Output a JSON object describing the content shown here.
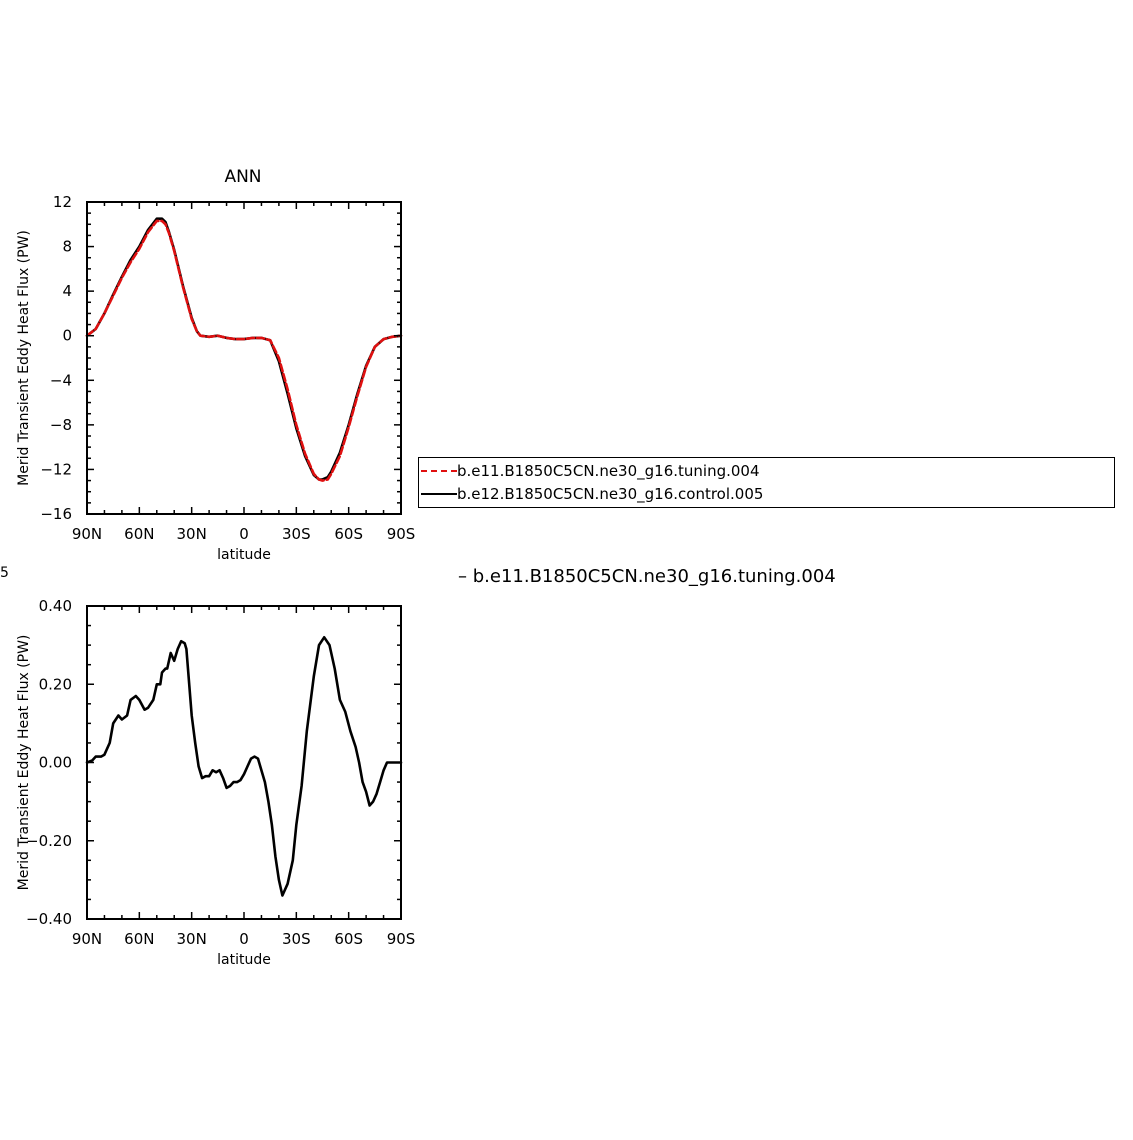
{
  "chart_data": [
    {
      "type": "line",
      "title": "ANN",
      "xlabel": "latitude",
      "ylabel": "Merid Transient Eddy Heat Flux (PW)",
      "xlim": [
        90,
        -90
      ],
      "ylim": [
        -16,
        12
      ],
      "xticks": [
        90,
        60,
        30,
        0,
        -30,
        -60,
        -90
      ],
      "xtick_labels": [
        "90N",
        "60N",
        "30N",
        "0",
        "30S",
        "60S",
        "90S"
      ],
      "yticks": [
        -16,
        -12,
        -8,
        -4,
        0,
        4,
        8,
        12
      ],
      "ytick_labels": [
        "−16",
        "−12",
        "−8",
        "−4",
        "0",
        "4",
        "8",
        "12"
      ],
      "legend_position": "right",
      "series": [
        {
          "name": "b.e11.B1850C5CN.ne30_g16.tuning.004",
          "color": "#e01010",
          "dash": "dashed",
          "x": [
            90,
            85,
            80,
            75,
            70,
            65,
            60,
            55,
            50,
            47,
            45,
            43,
            40,
            35,
            30,
            27,
            25,
            20,
            15,
            10,
            5,
            0,
            -5,
            -10,
            -15,
            -20,
            -25,
            -30,
            -35,
            -40,
            -43,
            -45,
            -48,
            -50,
            -55,
            -60,
            -65,
            -70,
            -75,
            -80,
            -85,
            -90
          ],
          "y": [
            0,
            0.6,
            2.0,
            3.6,
            5.2,
            6.6,
            7.8,
            9.3,
            10.3,
            10.3,
            10.0,
            9.2,
            7.6,
            4.4,
            1.5,
            0.4,
            0.0,
            -0.1,
            0.0,
            -0.2,
            -0.3,
            -0.3,
            -0.2,
            -0.2,
            -0.4,
            -2.0,
            -4.8,
            -8.0,
            -10.6,
            -12.4,
            -12.9,
            -13.0,
            -12.9,
            -12.4,
            -10.8,
            -8.2,
            -5.4,
            -2.8,
            -1.0,
            -0.3,
            -0.1,
            0.0
          ]
        },
        {
          "name": "b.e12.B1850C5CN.ne30_g16.control.005",
          "color": "#000000",
          "dash": "solid",
          "x": [
            90,
            85,
            80,
            75,
            70,
            65,
            60,
            55,
            50,
            47,
            45,
            43,
            40,
            35,
            30,
            27,
            25,
            20,
            15,
            10,
            5,
            0,
            -5,
            -10,
            -15,
            -20,
            -25,
            -30,
            -35,
            -40,
            -43,
            -45,
            -48,
            -50,
            -55,
            -60,
            -65,
            -70,
            -75,
            -80,
            -85,
            -90
          ],
          "y": [
            0,
            0.6,
            2.0,
            3.7,
            5.3,
            6.8,
            8.0,
            9.5,
            10.5,
            10.5,
            10.2,
            9.3,
            7.7,
            4.5,
            1.6,
            0.4,
            0.0,
            -0.1,
            0.0,
            -0.2,
            -0.3,
            -0.3,
            -0.2,
            -0.2,
            -0.4,
            -2.3,
            -5.2,
            -8.3,
            -10.8,
            -12.5,
            -12.9,
            -12.9,
            -12.7,
            -12.2,
            -10.5,
            -8.0,
            -5.2,
            -2.7,
            -1.0,
            -0.3,
            -0.1,
            0.0
          ]
        }
      ]
    },
    {
      "type": "line",
      "title": "",
      "xlabel": "latitude",
      "ylabel": "Merid Transient Eddy Heat Flux (PW)",
      "xlim": [
        90,
        -90
      ],
      "ylim": [
        -0.4,
        0.4
      ],
      "xticks": [
        90,
        60,
        30,
        0,
        -30,
        -60,
        -90
      ],
      "xtick_labels": [
        "90N",
        "60N",
        "30N",
        "0",
        "30S",
        "60S",
        "90S"
      ],
      "yticks": [
        -0.4,
        -0.2,
        0.0,
        0.2,
        0.4
      ],
      "ytick_labels": [
        "−0.40",
        "−0.20",
        "0.00",
        "0.20",
        "0.40"
      ],
      "legend_position": "right",
      "series": [
        {
          "name": "b.e11.B1850C5CN.ne30_g16.tuning.004",
          "color": "#000000",
          "dash": "solid",
          "x": [
            90,
            87,
            85,
            82,
            80,
            77,
            75,
            72,
            70,
            67,
            65,
            62,
            60,
            57,
            55,
            52,
            50,
            48,
            47,
            45,
            44,
            42,
            40,
            38,
            36,
            34,
            33,
            30,
            28,
            26,
            24,
            22,
            20,
            18,
            16,
            14,
            12,
            10,
            8,
            6,
            4,
            2,
            0,
            -2,
            -4,
            -6,
            -8,
            -10,
            -12,
            -14,
            -16,
            -18,
            -20,
            -22,
            -25,
            -28,
            -30,
            -33,
            -36,
            -40,
            -43,
            -46,
            -49,
            -52,
            -55,
            -58,
            -61,
            -64,
            -66,
            -68,
            -70,
            -72,
            -74,
            -76,
            -78,
            -80,
            -82,
            -84,
            -86,
            -88,
            -90
          ],
          "y": [
            0.0,
            0.005,
            0.015,
            0.015,
            0.02,
            0.05,
            0.1,
            0.12,
            0.11,
            0.12,
            0.16,
            0.17,
            0.16,
            0.135,
            0.14,
            0.16,
            0.2,
            0.2,
            0.23,
            0.24,
            0.24,
            0.28,
            0.26,
            0.29,
            0.31,
            0.305,
            0.29,
            0.12,
            0.05,
            -0.01,
            -0.04,
            -0.035,
            -0.035,
            -0.02,
            -0.025,
            -0.02,
            -0.04,
            -0.065,
            -0.06,
            -0.05,
            -0.05,
            -0.045,
            -0.03,
            -0.01,
            0.01,
            0.015,
            0.01,
            -0.02,
            -0.05,
            -0.1,
            -0.16,
            -0.24,
            -0.3,
            -0.34,
            -0.31,
            -0.25,
            -0.16,
            -0.06,
            0.08,
            0.22,
            0.3,
            0.32,
            0.3,
            0.24,
            0.16,
            0.13,
            0.08,
            0.04,
            0.0,
            -0.05,
            -0.075,
            -0.11,
            -0.1,
            -0.08,
            -0.05,
            -0.02,
            0.0,
            0.0,
            0.0,
            0.0,
            0.0
          ]
        }
      ]
    }
  ],
  "legend": {
    "items": [
      {
        "label": "b.e11.B1850C5CN.ne30_g16.tuning.004",
        "color": "#e01010",
        "dash": "dashed"
      },
      {
        "label": "b.e12.B1850C5CN.ne30_g16.control.005",
        "color": "#000000",
        "dash": "solid"
      }
    ]
  },
  "diff_legend": {
    "label": "b.e11.B1850C5CN.ne30_g16.tuning.004",
    "dash_glyph": "–"
  },
  "cut_glyph": "5"
}
